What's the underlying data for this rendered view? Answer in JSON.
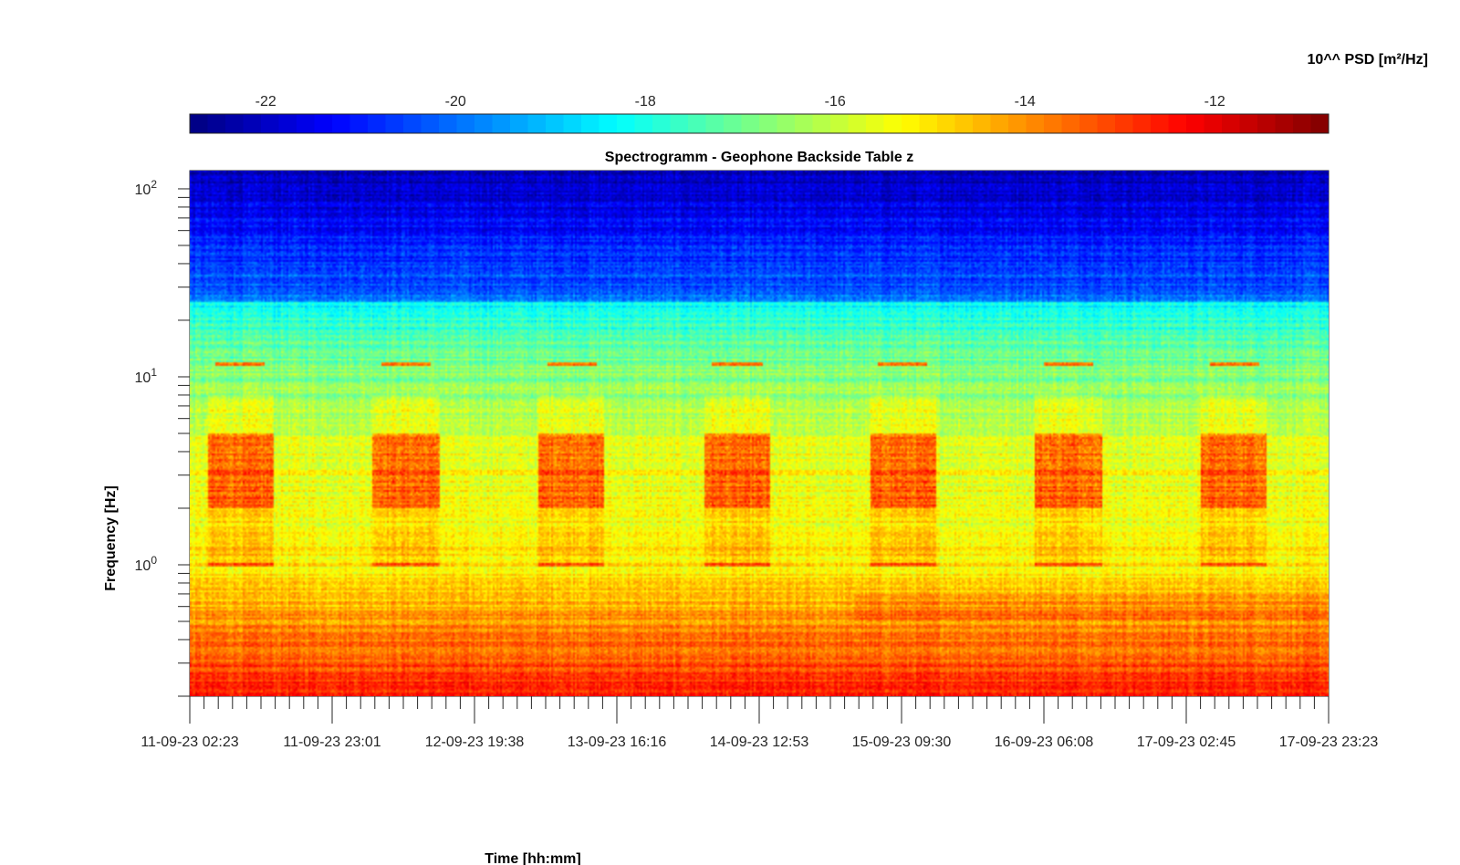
{
  "chart_data": {
    "type": "heatmap",
    "title": "Spectrogramm - Geophone Backside Table z",
    "xlabel": "Time [hh:mm]",
    "ylabel": "Frequency [Hz]",
    "colorbar_label": "10^^ PSD [m²/Hz]",
    "colormap": "jet",
    "colorbar_ticks": [
      "-22",
      "-20",
      "-18",
      "-16",
      "-14",
      "-12"
    ],
    "colorbar_range": [
      -22.8,
      -10.8
    ],
    "x_ticks": [
      "11-09-23 02:23",
      "11-09-23 23:01",
      "12-09-23 19:38",
      "13-09-23 16:16",
      "14-09-23 12:53",
      "15-09-23 09:30",
      "16-09-23 06:08",
      "17-09-23 02:45",
      "17-09-23 23:23"
    ],
    "x_range": [
      "11-09-23 02:23",
      "17-09-23 23:23"
    ],
    "y_scale": "log",
    "y_ticks": [
      {
        "base": "10",
        "exp": "0"
      },
      {
        "base": "10",
        "exp": "1"
      },
      {
        "base": "10",
        "exp": "2"
      }
    ],
    "y_range": [
      0.2,
      125
    ],
    "grid": false,
    "features": {
      "daytime_bursts_hz": [
        2.0,
        5.0
      ],
      "line_1hz": 1.0,
      "line_12hz": 11.7,
      "microseism_hz": [
        0.5,
        0.7
      ]
    }
  }
}
